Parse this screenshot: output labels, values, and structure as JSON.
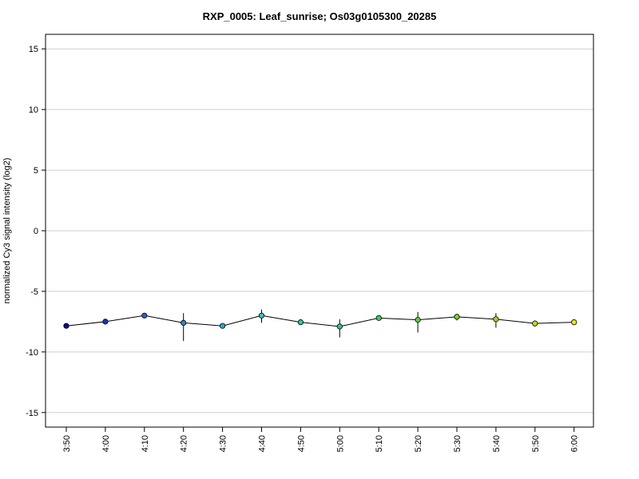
{
  "chart_data": {
    "type": "line",
    "title": "RXP_0005: Leaf_sunrise; Os03g0105300_20285",
    "xlabel": "",
    "ylabel": "normalized Cy3 signal intensity (log2)",
    "ylim": [
      -16.2,
      16.2
    ],
    "yticks": [
      -15,
      -10,
      -5,
      0,
      5,
      10,
      15
    ],
    "grid": true,
    "categories": [
      "3:50",
      "4:00",
      "4:10",
      "4:20",
      "4:30",
      "4:40",
      "4:50",
      "5:00",
      "5:10",
      "5:20",
      "5:30",
      "5:40",
      "5:50",
      "6:00"
    ],
    "series": [
      {
        "values": [
          -7.85,
          -7.5,
          -7.0,
          -7.6,
          -7.85,
          -7.0,
          -7.55,
          -7.9,
          -7.2,
          -7.35,
          -7.1,
          -7.3,
          -7.65,
          -7.55
        ],
        "err_low": [
          -7.85,
          -7.5,
          -7.0,
          -9.1,
          -7.85,
          -7.6,
          -7.55,
          -8.8,
          -7.2,
          -8.4,
          -7.4,
          -8.0,
          -7.9,
          -7.55
        ],
        "err_high": [
          -7.85,
          -7.5,
          -7.0,
          -6.8,
          -7.85,
          -6.5,
          -7.55,
          -7.3,
          -7.2,
          -6.7,
          -6.85,
          -6.8,
          -7.4,
          -7.55
        ],
        "point_colors": [
          "#0a0a96",
          "#1b34b4",
          "#2e5ec8",
          "#2e86c8",
          "#2ea6c4",
          "#2ec4c0",
          "#2ec8a4",
          "#2ec882",
          "#3ccd5a",
          "#58d23c",
          "#7ad228",
          "#a6d21e",
          "#c8d81c",
          "#e6e61c"
        ]
      }
    ]
  }
}
